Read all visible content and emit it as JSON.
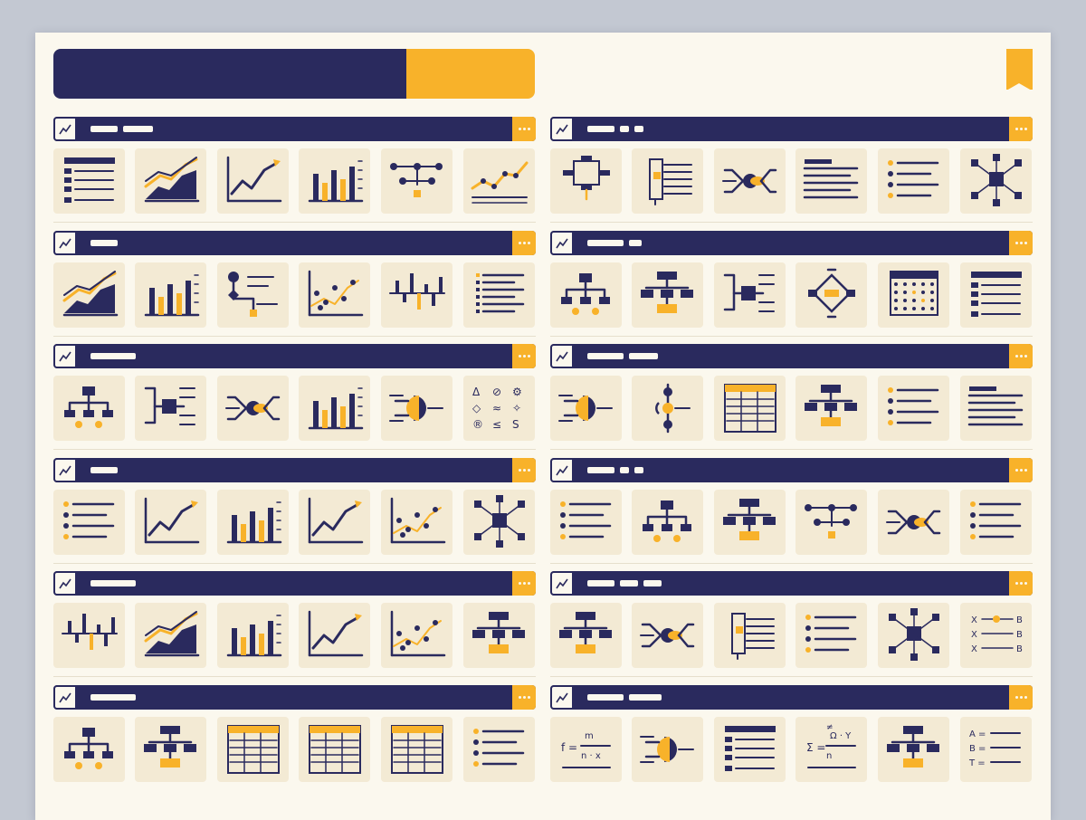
{
  "page": {
    "title_bar": "",
    "bookmark": "bookmark-icon"
  },
  "colors": {
    "navy": "#2a2a5e",
    "amber": "#f8b22a",
    "tile": "#f3ead4",
    "paper": "#fbf8ee",
    "backdrop": "#c3c8d2"
  },
  "sections": [
    {
      "id": "s1",
      "icon": "trend-chart-icon",
      "title": "",
      "tiles": [
        "table-rows",
        "area-chart",
        "line-chart",
        "bar-chart",
        "node-network",
        "line-scatter"
      ]
    },
    {
      "id": "s2",
      "icon": "list-icon",
      "title": "",
      "tiles": [
        "block-diagram",
        "tree-list",
        "hub-diagram",
        "text-lines",
        "bullet-list",
        "node-graph"
      ]
    },
    {
      "id": "s3",
      "icon": "sparkline-icon",
      "title": "",
      "tiles": [
        "area-chart",
        "bar-chart",
        "flow-nodes",
        "scatter-plot",
        "diverging-bars",
        "text-list"
      ]
    },
    {
      "id": "s4",
      "icon": "bracket-list-icon",
      "title": "",
      "tiles": [
        "org-chart",
        "flowchart",
        "bracket-diagram",
        "cycle-diagram",
        "calendar-grid",
        "table-rows"
      ]
    },
    {
      "id": "s5",
      "icon": "hierarchy-icon",
      "title": "",
      "tiles": [
        "org-chart",
        "bracket-diagram",
        "hub-diagram",
        "bar-chart",
        "mind-map",
        "symbols-grid"
      ]
    },
    {
      "id": "s6",
      "icon": "gear-icon",
      "title": "",
      "tiles": [
        "mind-map",
        "node-chain",
        "table-grid",
        "flowchart",
        "bullet-list",
        "text-lines"
      ]
    },
    {
      "id": "s7",
      "icon": "shapes-icon",
      "title": "",
      "tiles": [
        "bullet-list",
        "line-chart",
        "bar-chart",
        "line-chart",
        "scatter-plot",
        "node-graph"
      ]
    },
    {
      "id": "s8",
      "icon": "grid-icon",
      "title": "",
      "tiles": [
        "bullet-list",
        "org-chart",
        "flowchart",
        "node-network",
        "hub-diagram",
        "bullet-list"
      ]
    },
    {
      "id": "s9",
      "icon": "hierarchy-icon",
      "title": "",
      "tiles": [
        "diverging-bars",
        "area-chart",
        "bar-chart",
        "line-chart",
        "scatter-plot",
        "flowchart"
      ]
    },
    {
      "id": "s10",
      "icon": "list-icon",
      "title": "",
      "tiles": [
        "flowchart",
        "hub-diagram",
        "tree-list",
        "bullet-list",
        "node-graph",
        "symbols-grid"
      ]
    },
    {
      "id": "s11",
      "icon": "calendar-icon",
      "title": "",
      "tiles": [
        "org-chart",
        "flowchart",
        "table-grid",
        "table-grid",
        "table-grid",
        "bullet-list"
      ]
    },
    {
      "id": "s12",
      "icon": "info-icon",
      "title": "",
      "tiles": [
        "formula",
        "mind-map",
        "table-rows",
        "formula",
        "flowchart",
        "symbols-grid"
      ]
    }
  ],
  "formula_1": {
    "lhs": "f =",
    "top": "m",
    "bottom": "n · x"
  },
  "formula_2": {
    "lhs": "Σ =",
    "neq": "≠",
    "top": "Ω · Y",
    "bottom": "n"
  },
  "symbols_1": [
    "Δ",
    "⊘",
    "⚙",
    "◇",
    "≈",
    "✧",
    "®",
    "≤",
    "S"
  ],
  "symbols_2": {
    "rows": [
      [
        "X",
        "B"
      ],
      [
        "X",
        "B"
      ],
      [
        "X",
        "B"
      ]
    ],
    "mid": "×"
  },
  "symbols_3": {
    "rows": [
      [
        "A =",
        ""
      ],
      [
        "B =",
        ""
      ],
      [
        "T =",
        ""
      ]
    ]
  }
}
